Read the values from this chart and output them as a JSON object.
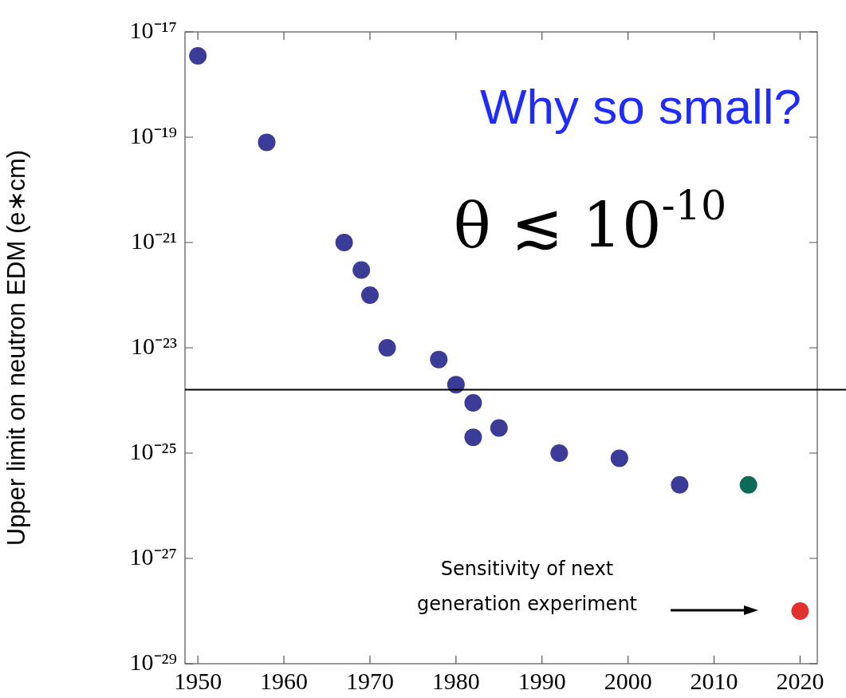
{
  "chart_data": {
    "type": "scatter",
    "ylabel": "Upper limit on neutron EDM (e∗cm)",
    "log": "y",
    "grid": false,
    "legend": false,
    "marker": "circle",
    "xlim": [
      1948.5,
      2022
    ],
    "xticks": [
      1950,
      1960,
      1970,
      1980,
      1990,
      2000,
      2010,
      2020
    ],
    "ylim": [
      1e-29,
      1e-17
    ],
    "yticks": [
      {
        "value": 1e-29,
        "label": "10⁻²⁹"
      },
      {
        "value": 1e-27,
        "label": "10⁻²⁷"
      },
      {
        "value": 1e-25,
        "label": "10⁻²⁵"
      },
      {
        "value": 1e-23,
        "label": "10⁻²³"
      },
      {
        "value": 1e-21,
        "label": "10⁻²¹"
      },
      {
        "value": 1e-19,
        "label": "10⁻¹⁹"
      },
      {
        "value": 1e-17,
        "label": "10⁻¹⁷"
      }
    ],
    "series": [
      {
        "color": "#3b3b98",
        "x": [
          1950,
          1958,
          1967,
          1969,
          1970,
          1972,
          1978,
          1980,
          1982,
          1982,
          1985,
          1992,
          1999,
          2006
        ],
        "values": [
          3.5e-18,
          8e-20,
          1e-21,
          3e-22,
          1e-22,
          1e-23,
          6e-24,
          2e-24,
          9e-25,
          2e-25,
          3e-25,
          1e-25,
          8e-26,
          2.5e-26
        ]
      },
      {
        "color": "#0d6b55",
        "x": [
          2014
        ],
        "values": [
          2.5e-26
        ]
      },
      {
        "color": "#e0302f",
        "x": [
          2020
        ],
        "values": [
          1e-28
        ]
      }
    ],
    "ref_lines": [
      {
        "axis": "y",
        "value": 1.6e-24,
        "color": "#000000"
      }
    ],
    "annotations": [
      "Why so small?",
      "θ ≲ 10$^{-10}$",
      "Sensitivity of next generation experiment"
    ]
  }
}
